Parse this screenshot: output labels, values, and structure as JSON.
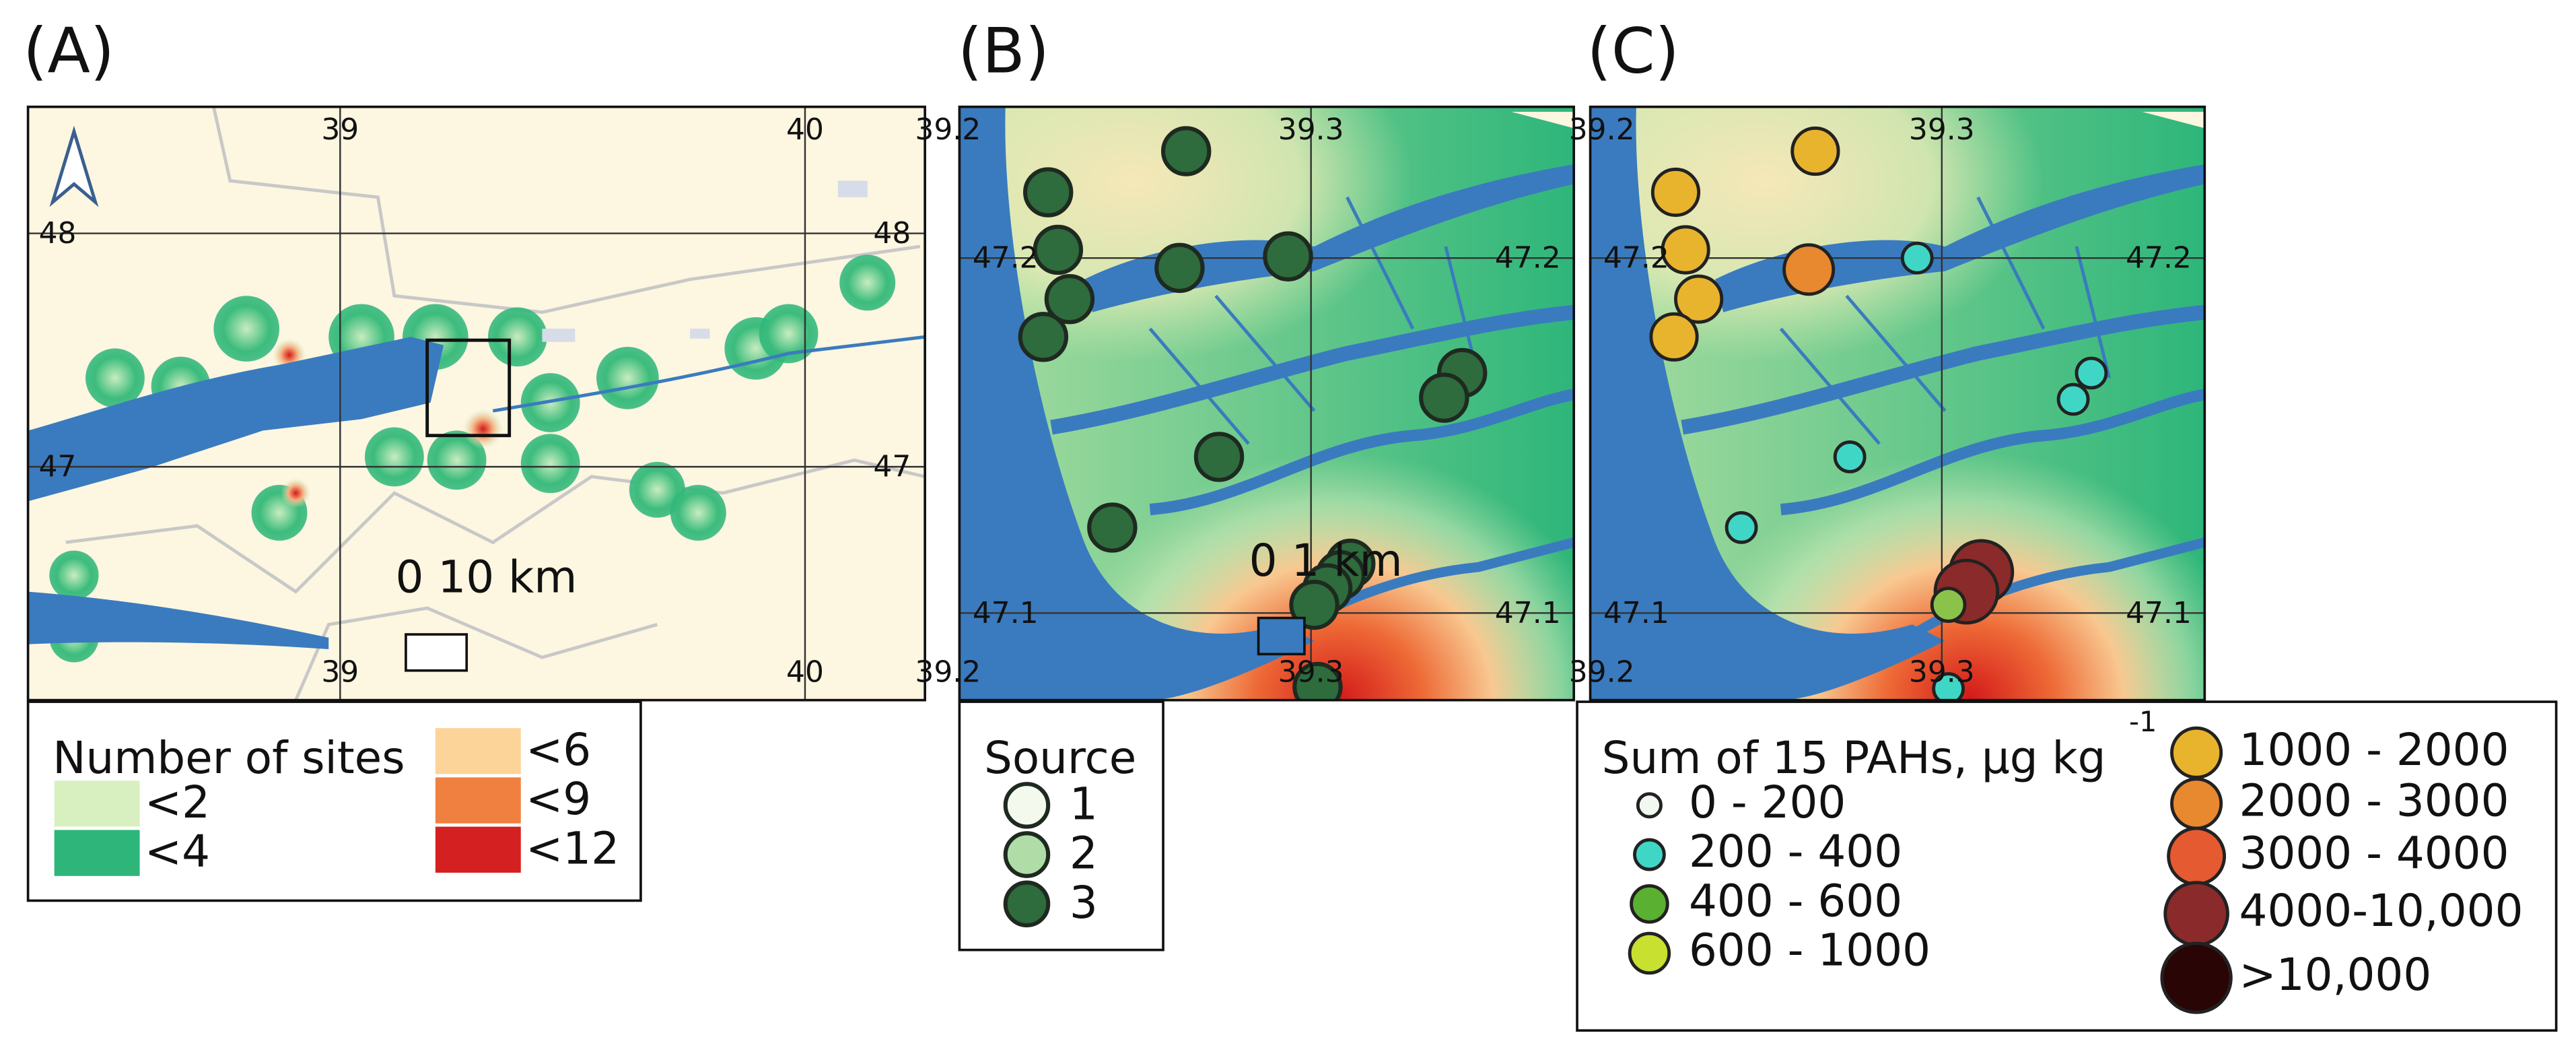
{
  "panels": [
    {
      "label": "(A)",
      "map": {
        "top_labels": [
          "39",
          "40"
        ],
        "bottom_labels": [
          "39",
          "40"
        ],
        "left_labels": [
          "48",
          "47"
        ],
        "right_labels": [
          "48",
          "47"
        ],
        "scale_bar": "0 10 km"
      },
      "legend": {
        "title": "Number of sites",
        "items": [
          "<2",
          "<4",
          "<6",
          "<9",
          "<12"
        ]
      }
    },
    {
      "label": "(B)",
      "map": {
        "top_labels": [
          "39.2",
          "39.3"
        ],
        "bottom_labels": [
          "39.2",
          "39.3"
        ],
        "left_labels": [
          "47.2",
          "47.1"
        ],
        "right_labels": [
          "47.2",
          "47.1"
        ],
        "scale_bar": "0 1 km"
      },
      "legend": {
        "title": "Source",
        "items": [
          "1",
          "2",
          "3"
        ]
      }
    },
    {
      "label": "(C)",
      "map": {
        "top_labels": [
          "39.2",
          "39.3"
        ],
        "bottom_labels": [
          "39.2",
          "39.3"
        ],
        "left_labels": [
          "47.2",
          "47.1"
        ],
        "right_labels": [
          "47.2",
          "47.1"
        ]
      },
      "legend": {
        "title": "Sum of 15 PAHs, μg kg",
        "superscript": "-1",
        "items": [
          "0 - 200",
          "200 - 400",
          "400 - 600",
          "600 - 1000",
          "1000 - 2000",
          "2000 - 3000",
          "3000 - 4000",
          "4000-10,000",
          ">10,000"
        ]
      }
    }
  ]
}
